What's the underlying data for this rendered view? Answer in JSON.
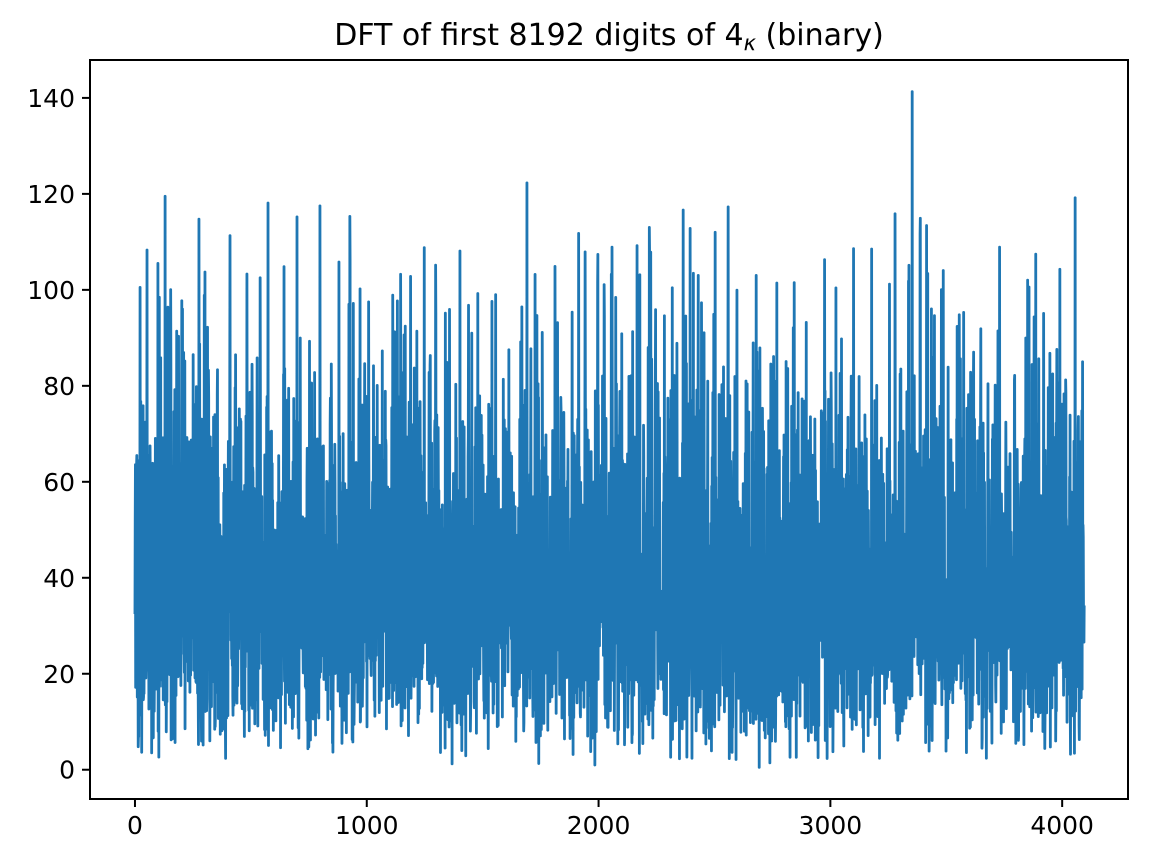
{
  "title": {
    "prefix": "DFT of first 8192 digits of 4",
    "subscript": "κ",
    "suffix": " (binary)"
  },
  "chart_data": {
    "type": "line",
    "title": "DFT of first 8192 digits of 4_κ (binary)",
    "xlabel": "",
    "ylabel": "",
    "legend": "none",
    "grid": false,
    "background_color": "#ffffff",
    "line_color": "#1f77b4",
    "spine_color": "#000000",
    "tick_label_color": "#000000",
    "xlim": [
      -194,
      4284
    ],
    "ylim": [
      -6.1,
      147.9
    ],
    "x_ticks": [
      0,
      1000,
      2000,
      3000,
      4000
    ],
    "y_ticks": [
      0,
      20,
      40,
      60,
      80,
      100,
      120,
      140
    ],
    "n_points": 4096,
    "x_start": 0,
    "x_step": 1,
    "value_range_typical": [
      1,
      100
    ],
    "dense_band": [
      15,
      62
    ],
    "max_value": 141.3,
    "max_value_x": 3353,
    "noise_model": {
      "distribution": "rayleigh",
      "sigma": 32,
      "seed": 7,
      "clamp_max": 118
    },
    "notable_peaks": [
      [
        22,
        100.5
      ],
      [
        99,
        105.5
      ],
      [
        130,
        119.5
      ],
      [
        205,
        96.0
      ],
      [
        410,
        111.3
      ],
      [
        483,
        103.3
      ],
      [
        574,
        118.1
      ],
      [
        699,
        115.2
      ],
      [
        798,
        117.5
      ],
      [
        880,
        105.8
      ],
      [
        971,
        100.2
      ],
      [
        1122,
        91.2
      ],
      [
        1216,
        91.4
      ],
      [
        1402,
        108.1
      ],
      [
        1540,
        97.6
      ],
      [
        1691,
        122.3
      ],
      [
        1812,
        104.9
      ],
      [
        1942,
        107.9
      ],
      [
        2058,
        108.9
      ],
      [
        2166,
        109.2
      ],
      [
        2284,
        94.6
      ],
      [
        2395,
        112.8
      ],
      [
        2559,
        117.3
      ],
      [
        2680,
        103.0
      ],
      [
        2844,
        101.5
      ],
      [
        2975,
        106.3
      ],
      [
        3100,
        108.6
      ],
      [
        3178,
        108.5
      ],
      [
        3255,
        101.2
      ],
      [
        3353,
        141.3
      ],
      [
        3420,
        103.4
      ],
      [
        3556,
        94.8
      ],
      [
        3649,
        91.9
      ],
      [
        3730,
        108.9
      ],
      [
        3857,
        100.6
      ],
      [
        3920,
        95.1
      ],
      [
        3990,
        104.3
      ],
      [
        4056,
        119.2
      ]
    ],
    "description": "Magnitude spectrum (DFT) of the first 8192 binary digits: a dense noise band between roughly 15 and 62 with frequent spikes up to ~100-120 and a single tallest spike of ~141 near bin 3353; no DC trend, flat white-noise-like spectrum across bins 0-4095."
  }
}
